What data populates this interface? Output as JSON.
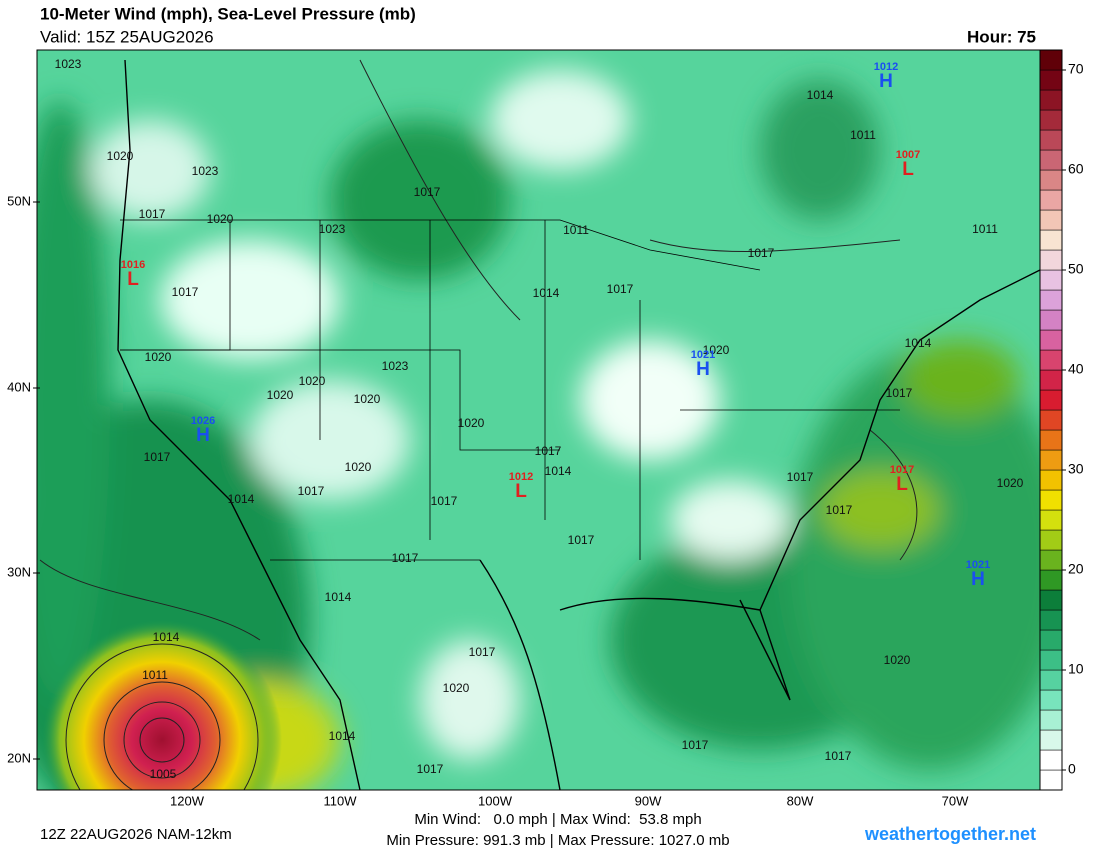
{
  "header": {
    "title": "10-Meter Wind (mph), Sea-Level Pressure (mb)",
    "valid": "Valid: 15Z 25AUG2026",
    "hour": "Hour: 75"
  },
  "footer": {
    "run": "12Z 22AUG2026 NAM-12km",
    "wind": "Min Wind:   0.0 mph | Max Wind:  53.8 mph",
    "pressure": "Min Pressure: 991.3 mb | Max Pressure: 1027.0 mb",
    "site": "weathertogether.net"
  },
  "latitude_labels": [
    "50N",
    "40N",
    "30N",
    "20N"
  ],
  "longitude_labels": [
    "120W",
    "110W",
    "100W",
    "90W",
    "80W",
    "70W"
  ],
  "isobar_labels": [
    "1023",
    "1020",
    "1023",
    "1017",
    "1020",
    "1023",
    "1017",
    "1020",
    "1020",
    "1020",
    "1023",
    "1020",
    "1017",
    "1014",
    "1017",
    "1020",
    "1020",
    "1017",
    "1014",
    "1017",
    "1017",
    "1014",
    "1017",
    "1017",
    "1020",
    "1014",
    "1017",
    "1014",
    "1011",
    "1005",
    "1017",
    "1011",
    "1014",
    "1017",
    "1017",
    "1020",
    "1014",
    "1011",
    "1011",
    "1014",
    "1017",
    "1017",
    "1017",
    "1020",
    "1020",
    "1017",
    "1017"
  ],
  "pressure_centers": [
    {
      "letter": "H",
      "value": "1012"
    },
    {
      "letter": "L",
      "value": "1007"
    },
    {
      "letter": "L",
      "value": "1016"
    },
    {
      "letter": "H",
      "value": "1021"
    },
    {
      "letter": "H",
      "value": "1026"
    },
    {
      "letter": "L",
      "value": "1012"
    },
    {
      "letter": "L",
      "value": "1017"
    },
    {
      "letter": "H",
      "value": "1021"
    }
  ],
  "colorbar": {
    "lim": [
      -2,
      72
    ],
    "ticks": [
      0,
      10,
      20,
      30,
      40,
      50,
      60,
      70
    ],
    "colors": [
      "#ffffff",
      "#ffffff",
      "#d8f8ea",
      "#a8f0d4",
      "#78e4bc",
      "#56d2a0",
      "#3cbf86",
      "#28aa6a",
      "#179352",
      "#0c7e3a",
      "#2f9824",
      "#6ab31e",
      "#a2cc16",
      "#d4e00e",
      "#f0e000",
      "#f2c200",
      "#ee9c12",
      "#e87418",
      "#e04624",
      "#d81c30",
      "#d22448",
      "#d8446e",
      "#d862a0",
      "#d482c4",
      "#dca2da",
      "#e8c2e2",
      "#f2d6dc",
      "#f8e4d2",
      "#f2c6b6",
      "#eaa6a4",
      "#da8686",
      "#ca6674",
      "#ba4858",
      "#a42a3a",
      "#8c1424",
      "#740414",
      "#600008"
    ]
  }
}
